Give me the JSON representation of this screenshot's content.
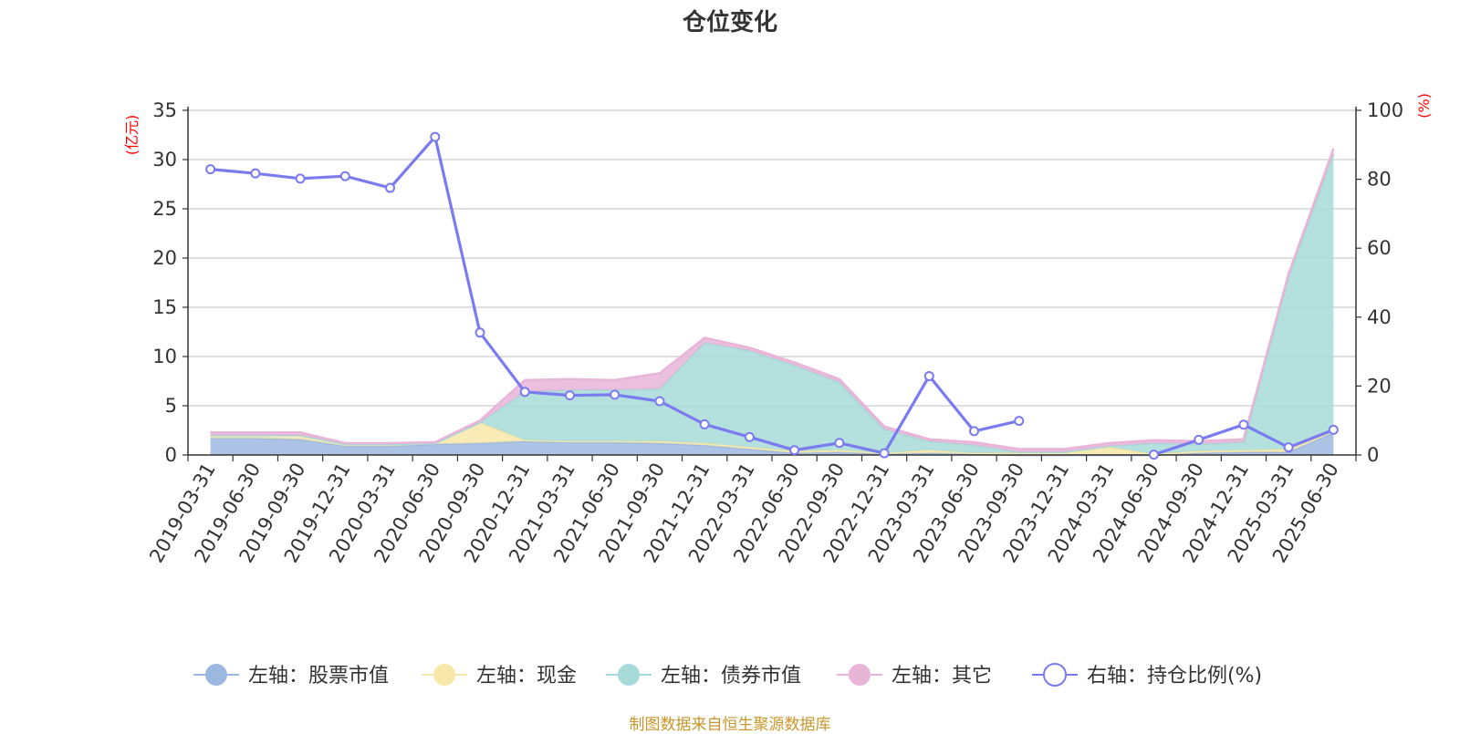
{
  "title": "仓位变化",
  "footer": "制图数据来自恒生聚源数据库",
  "chart_data": {
    "type": "area",
    "left_unit": "(亿元)",
    "right_unit": "(%)",
    "left_ylim": [
      0,
      35
    ],
    "left_ticks": [
      "0",
      "5",
      "10",
      "15",
      "20",
      "25",
      "30",
      "35"
    ],
    "right_ylim": [
      0,
      100
    ],
    "right_ticks": [
      "0",
      "20",
      "40",
      "60",
      "80",
      "100"
    ],
    "grid": true,
    "legend_position": "bottom",
    "categories": [
      "2019-03-31",
      "2019-06-30",
      "2019-09-30",
      "2019-12-31",
      "2020-03-31",
      "2020-06-30",
      "2020-09-30",
      "2020-12-31",
      "2021-03-31",
      "2021-06-30",
      "2021-09-30",
      "2021-12-31",
      "2022-03-31",
      "2022-06-30",
      "2022-09-30",
      "2022-12-31",
      "2023-03-31",
      "2023-06-30",
      "2023-09-30",
      "2023-12-31",
      "2024-03-31",
      "2024-06-30",
      "2024-09-30",
      "2024-12-31",
      "2025-03-31",
      "2025-06-30"
    ],
    "series": [
      {
        "name": "左轴：股票市值",
        "axis": "left",
        "kind": "stack",
        "color": "#9db8e0",
        "values": [
          1.7,
          1.7,
          1.6,
          0.9,
          0.9,
          1.1,
          1.2,
          1.4,
          1.3,
          1.3,
          1.2,
          1.0,
          0.6,
          0.2,
          0.3,
          0.1,
          0.2,
          0.1,
          0.0,
          0.0,
          0.0,
          0.0,
          0.2,
          0.3,
          0.3,
          2.3
        ]
      },
      {
        "name": "左轴：现金",
        "axis": "left",
        "kind": "stack",
        "color": "#f7e7a8",
        "values": [
          0.3,
          0.3,
          0.4,
          0.2,
          0.2,
          0.1,
          2.1,
          0.1,
          0.1,
          0.1,
          0.2,
          0.2,
          0.2,
          0.2,
          0.2,
          0.1,
          0.3,
          0.1,
          0.2,
          0.2,
          0.8,
          0.1,
          0.2,
          0.2,
          0.3,
          0.3
        ]
      },
      {
        "name": "左轴：债券市值",
        "axis": "left",
        "kind": "stack",
        "color": "#a7dbd8",
        "values": [
          0.0,
          0.0,
          0.0,
          0.0,
          0.0,
          0.0,
          0.0,
          4.9,
          5.2,
          5.2,
          5.3,
          10.2,
          9.8,
          8.7,
          6.9,
          2.4,
          0.9,
          0.8,
          0.1,
          0.1,
          0.1,
          1.1,
          0.7,
          0.8,
          17.5,
          28.0
        ]
      },
      {
        "name": "左轴：其它",
        "axis": "left",
        "kind": "stack",
        "color": "#e8b4d8",
        "values": [
          0.3,
          0.3,
          0.3,
          0.1,
          0.1,
          0.1,
          0.2,
          1.2,
          1.1,
          1.0,
          1.6,
          0.5,
          0.3,
          0.3,
          0.3,
          0.3,
          0.2,
          0.3,
          0.3,
          0.3,
          0.3,
          0.3,
          0.3,
          0.3,
          0.3,
          0.5
        ]
      },
      {
        "name": "右轴：持仓比例(%)",
        "axis": "right",
        "kind": "line",
        "color": "#7b7bf0",
        "values": [
          82.9,
          81.7,
          80.2,
          80.9,
          77.5,
          92.3,
          35.5,
          18.3,
          17.3,
          17.5,
          15.6,
          8.9,
          5.2,
          1.4,
          3.5,
          0.5,
          22.9,
          6.9,
          9.9,
          null,
          null,
          0.1,
          4.4,
          8.8,
          2.2,
          7.3
        ]
      }
    ]
  }
}
